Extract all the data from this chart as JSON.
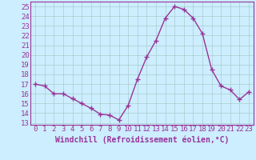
{
  "x": [
    0,
    1,
    2,
    3,
    4,
    5,
    6,
    7,
    8,
    9,
    10,
    11,
    12,
    13,
    14,
    15,
    16,
    17,
    18,
    19,
    20,
    21,
    22,
    23
  ],
  "y": [
    17.0,
    16.8,
    16.0,
    16.0,
    15.5,
    15.0,
    14.5,
    13.9,
    13.8,
    13.3,
    14.8,
    17.5,
    19.8,
    21.5,
    23.8,
    25.0,
    24.7,
    23.8,
    22.2,
    18.5,
    16.8,
    16.4,
    15.4,
    16.2
  ],
  "line_color": "#993399",
  "marker": "+",
  "marker_size": 4,
  "background_color": "#cceeff",
  "grid_color": "#aacccc",
  "xlabel": "Windchill (Refroidissement éolien,°C)",
  "xlabel_fontsize": 7,
  "xtick_labels": [
    "0",
    "1",
    "2",
    "3",
    "4",
    "5",
    "6",
    "7",
    "8",
    "9",
    "10",
    "11",
    "12",
    "13",
    "14",
    "15",
    "16",
    "17",
    "18",
    "19",
    "20",
    "21",
    "22",
    "23"
  ],
  "ytick_min": 13,
  "ytick_max": 25,
  "ytick_step": 1,
  "xlim": [
    -0.5,
    23.5
  ],
  "ylim": [
    12.8,
    25.5
  ],
  "tick_color": "#993399",
  "tick_fontsize": 6.5,
  "line_width": 1.0,
  "spine_color": "#993399"
}
